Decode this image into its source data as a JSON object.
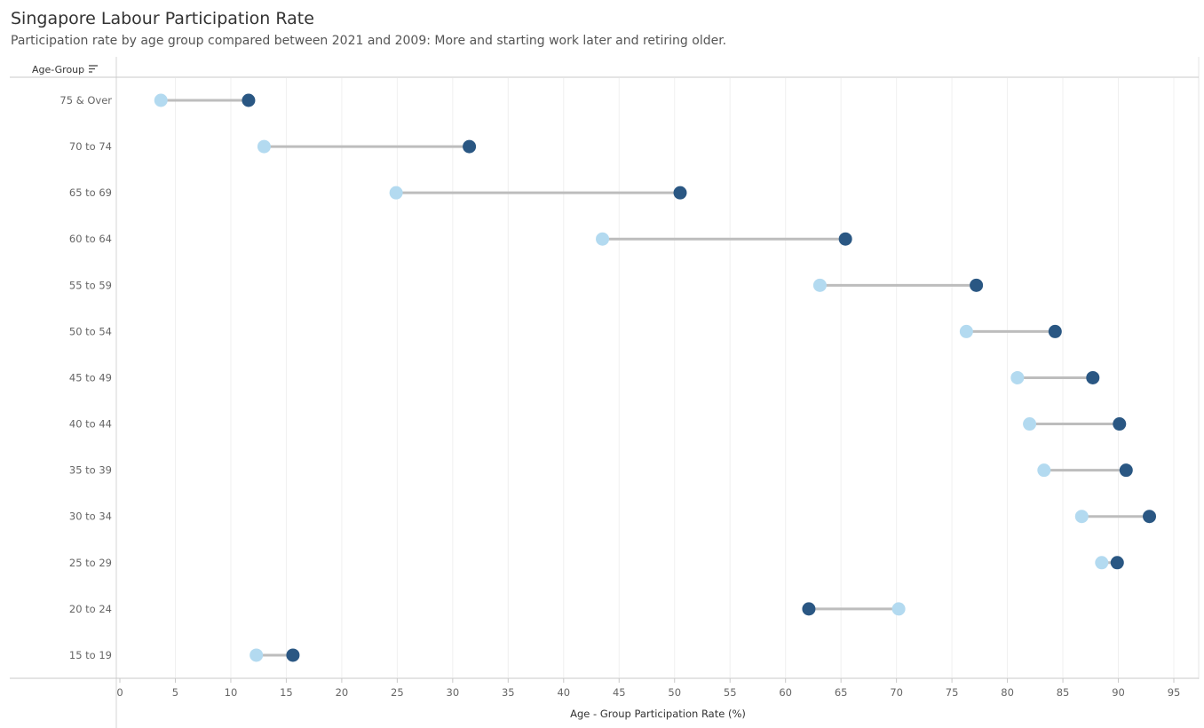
{
  "header": {
    "title": "Singapore Labour Participation Rate",
    "subtitle": "Participation rate by age group compared between 2021 and 2009: More and starting work later and retiring older."
  },
  "chart_data": {
    "type": "dumbbell",
    "row_header": "Age-Group",
    "xlabel": "Age - Group Participation Rate (%)",
    "xlim": [
      0,
      97
    ],
    "xticks": [
      0,
      5,
      10,
      15,
      20,
      25,
      30,
      35,
      40,
      45,
      50,
      55,
      60,
      65,
      70,
      75,
      80,
      85,
      90,
      95
    ],
    "grid": true,
    "colors": {
      "light": "#b3daf0",
      "dark": "#2a5783",
      "connector": "#bdbdbd"
    },
    "categories": [
      "75 & Over",
      "70 to 74",
      "65 to 69",
      "60 to 64",
      "55 to 59",
      "50 to 54",
      "45 to 49",
      "40 to 44",
      "35 to 39",
      "30 to 34",
      "25 to 29",
      "20 to 24",
      "15 to 19"
    ],
    "series": [
      {
        "values": [
          3.7,
          13.0,
          24.9,
          43.5,
          63.1,
          76.3,
          80.9,
          82.0,
          83.3,
          86.7,
          88.5,
          70.2,
          12.3
        ]
      },
      {
        "values": [
          11.6,
          31.5,
          50.5,
          65.4,
          77.2,
          84.3,
          87.7,
          90.1,
          90.7,
          92.8,
          89.9,
          62.1,
          15.6
        ]
      }
    ]
  }
}
